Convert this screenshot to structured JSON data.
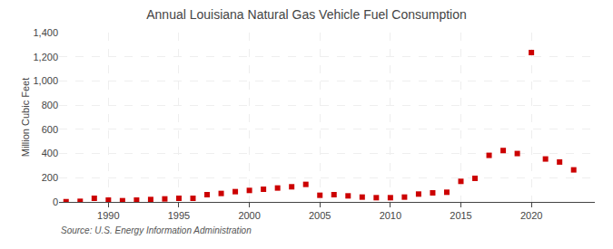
{
  "chart_data": {
    "type": "scatter",
    "title": "Annual Louisiana Natural Gas Vehicle Fuel Consumption",
    "ylabel": "Million Cubic Feet",
    "annotations": [
      "Source: U.S. Energy Information Administration"
    ],
    "x": [
      1987,
      1988,
      1989,
      1990,
      1991,
      1992,
      1993,
      1994,
      1995,
      1996,
      1997,
      1998,
      1999,
      2000,
      2001,
      2002,
      2003,
      2004,
      2005,
      2006,
      2007,
      2008,
      2009,
      2010,
      2011,
      2012,
      2013,
      2014,
      2015,
      2016,
      2017,
      2018,
      2019,
      2020,
      2021,
      2022,
      2023
    ],
    "values": [
      2,
      5,
      30,
      15,
      10,
      15,
      20,
      25,
      30,
      30,
      60,
      70,
      85,
      95,
      105,
      115,
      125,
      145,
      55,
      60,
      50,
      40,
      35,
      35,
      40,
      65,
      75,
      80,
      170,
      195,
      385,
      425,
      400,
      1235,
      355,
      330,
      265
    ],
    "color": "#cc0000",
    "marker": "square",
    "ylim": [
      0,
      1400
    ],
    "yticks": [
      0,
      200,
      400,
      600,
      800,
      {
        "value": 1000,
        "label": "1,000"
      },
      {
        "value": 1200,
        "label": "1,200"
      },
      {
        "value": 1400,
        "label": "1,400"
      }
    ],
    "xlim": [
      1986.5,
      2024.5
    ],
    "xticks": [
      1990,
      1995,
      2000,
      2005,
      2010,
      2015,
      2020
    ],
    "grid": true
  }
}
